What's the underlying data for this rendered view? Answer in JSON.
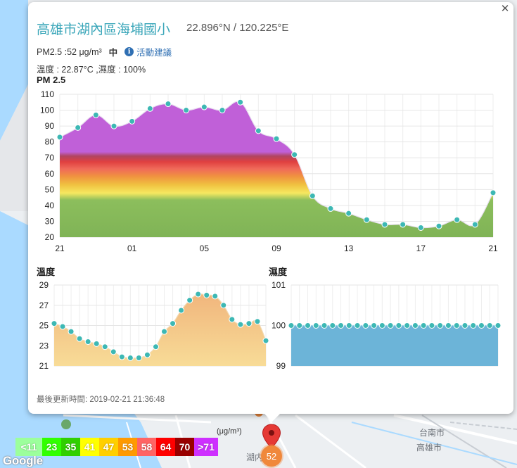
{
  "station": {
    "name": "高雄市湖內區海埔國小",
    "coords": "22.896°N / 120.225°E",
    "pm25_text": "PM2.5 :52 μg/m³",
    "level_text": "中",
    "advice_link": "活動建議",
    "weather_text": "溫度 : 22.87°C ,濕度 : 100%",
    "update_text": "最後更新時間: 2019-02-21 21:36:48"
  },
  "map": {
    "labels": [
      "台南市",
      "高雄市",
      "湖内"
    ],
    "unit": "(μg/m³)",
    "marker_value": "52",
    "google": "Google"
  },
  "legend": [
    {
      "label": "<11",
      "color": "#9cff9c"
    },
    {
      "label": "23",
      "color": "#31ff00"
    },
    {
      "label": "35",
      "color": "#31cf00"
    },
    {
      "label": "41",
      "color": "#ffff00"
    },
    {
      "label": "47",
      "color": "#ffcf00"
    },
    {
      "label": "53",
      "color": "#ff9a00"
    },
    {
      "label": "58",
      "color": "#ff6464"
    },
    {
      "label": "64",
      "color": "#ff0000"
    },
    {
      "label": "70",
      "color": "#990000"
    },
    {
      "label": ">71",
      "color": "#ce30ff"
    }
  ],
  "chart_data": [
    {
      "type": "area",
      "title": "PM 2.5",
      "x_ticks": [
        "21",
        "01",
        "05",
        "09",
        "13",
        "17",
        "21"
      ],
      "ylim": [
        20,
        110
      ],
      "y_ticks": [
        20,
        30,
        40,
        50,
        60,
        70,
        80,
        90,
        100,
        110
      ],
      "hours": 24,
      "values": [
        83,
        89,
        97,
        90,
        93,
        101,
        104,
        100,
        102,
        100,
        105,
        87,
        82,
        72,
        46,
        38,
        35,
        31,
        28,
        28,
        26,
        27,
        31,
        28,
        48
      ],
      "grid": true
    },
    {
      "type": "area",
      "title": "溫度",
      "ylim": [
        21,
        29
      ],
      "y_ticks": [
        21,
        23,
        25,
        27,
        29
      ],
      "values": [
        25.2,
        24.9,
        24.4,
        23.7,
        23.4,
        23.2,
        22.9,
        22.4,
        21.9,
        21.8,
        21.8,
        22.1,
        22.9,
        24.4,
        25.2,
        26.5,
        27.5,
        28.1,
        28.0,
        27.9,
        27.0,
        25.6,
        25.1,
        25.2,
        25.4,
        23.5
      ],
      "grid": true
    },
    {
      "type": "area",
      "title": "濕度",
      "ylim": [
        99,
        101
      ],
      "y_ticks": [
        99,
        100,
        101
      ],
      "values": [
        100,
        100,
        100,
        100,
        100,
        100,
        100,
        100,
        100,
        100,
        100,
        100,
        100,
        100,
        100,
        100,
        100,
        100,
        100,
        100,
        100,
        100,
        100,
        100,
        100,
        100
      ],
      "grid": true
    }
  ]
}
